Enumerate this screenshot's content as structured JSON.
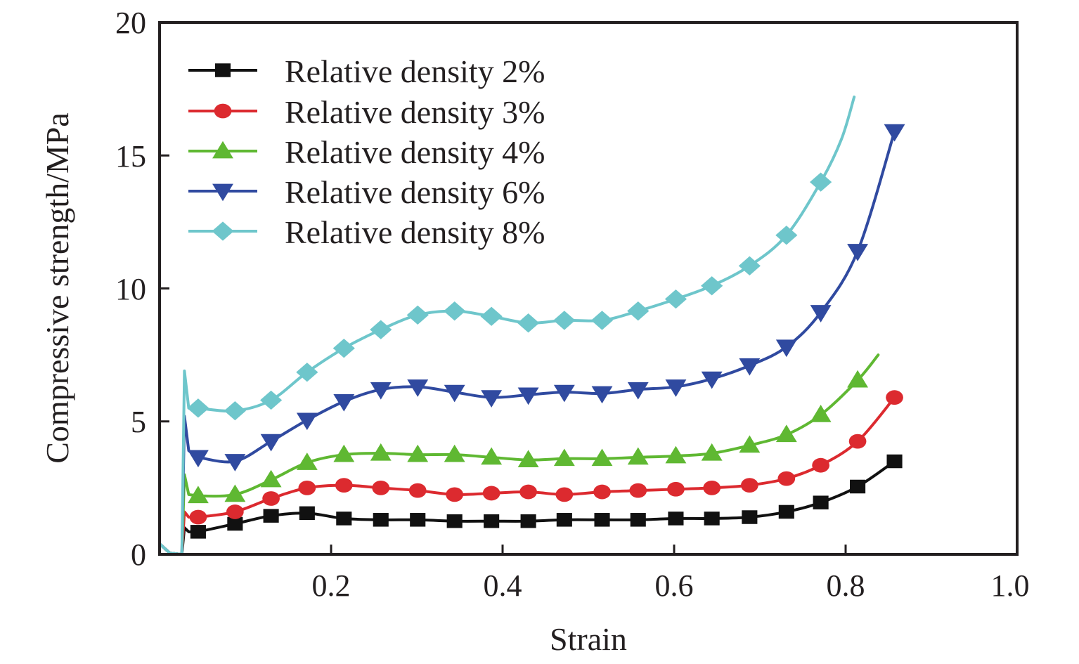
{
  "chart_data": {
    "type": "line",
    "title": "",
    "xlabel": "Strain",
    "ylabel": "Compressive strength/MPa",
    "xlim": [
      0,
      1.0
    ],
    "ylim": [
      0,
      20
    ],
    "xticks": [
      0.2,
      0.4,
      0.6,
      0.8,
      1.0
    ],
    "xtick_labels": [
      "0.2",
      "0.4",
      "0.6",
      "0.8",
      "1.0"
    ],
    "yticks": [
      0,
      5,
      10,
      15,
      20
    ],
    "ytick_labels": [
      "0",
      "5",
      "10",
      "15",
      "20"
    ],
    "grid": false,
    "legend_position": "top-left",
    "series": [
      {
        "name": "Relative density 2%",
        "color": "#111111",
        "marker": "square",
        "x": [
          0.045,
          0.088,
          0.13,
          0.172,
          0.215,
          0.258,
          0.301,
          0.344,
          0.387,
          0.43,
          0.472,
          0.516,
          0.558,
          0.602,
          0.644,
          0.688,
          0.731,
          0.771,
          0.814,
          0.857
        ],
        "y": [
          0.85,
          1.15,
          1.45,
          1.55,
          1.35,
          1.3,
          1.3,
          1.25,
          1.25,
          1.25,
          1.3,
          1.3,
          1.3,
          1.35,
          1.35,
          1.4,
          1.6,
          1.95,
          2.55,
          3.5
        ],
        "line_end_x": 0.857
      },
      {
        "name": "Relative density 3%",
        "color": "#dc2a2f",
        "marker": "circle",
        "x": [
          0.045,
          0.088,
          0.13,
          0.172,
          0.215,
          0.258,
          0.301,
          0.344,
          0.387,
          0.43,
          0.472,
          0.516,
          0.558,
          0.602,
          0.644,
          0.688,
          0.731,
          0.771,
          0.814,
          0.857
        ],
        "y": [
          1.4,
          1.6,
          2.1,
          2.5,
          2.6,
          2.5,
          2.4,
          2.25,
          2.3,
          2.35,
          2.25,
          2.35,
          2.4,
          2.45,
          2.5,
          2.6,
          2.85,
          3.35,
          4.25,
          5.9
        ]
      },
      {
        "name": "Relative density 4%",
        "color": "#5fb832",
        "marker": "triangle-up",
        "x": [
          0.045,
          0.088,
          0.13,
          0.172,
          0.215,
          0.258,
          0.301,
          0.344,
          0.387,
          0.43,
          0.472,
          0.516,
          0.558,
          0.602,
          0.644,
          0.688,
          0.731,
          0.771,
          0.814
        ],
        "y": [
          2.2,
          2.25,
          2.8,
          3.45,
          3.75,
          3.8,
          3.75,
          3.75,
          3.65,
          3.55,
          3.6,
          3.6,
          3.65,
          3.7,
          3.8,
          4.1,
          4.5,
          5.25,
          6.55
        ],
        "tail": [
          [
            0.838,
            7.5
          ]
        ]
      },
      {
        "name": "Relative density 6%",
        "color": "#304aa0",
        "marker": "triangle-down",
        "x": [
          0.045,
          0.088,
          0.13,
          0.172,
          0.215,
          0.258,
          0.301,
          0.344,
          0.387,
          0.43,
          0.472,
          0.516,
          0.558,
          0.602,
          0.644,
          0.688,
          0.731,
          0.771,
          0.814,
          0.857
        ],
        "y": [
          3.65,
          3.5,
          4.25,
          5.05,
          5.75,
          6.2,
          6.3,
          6.1,
          5.9,
          6.0,
          6.1,
          6.05,
          6.2,
          6.3,
          6.6,
          7.1,
          7.8,
          9.1,
          11.4,
          15.9
        ]
      },
      {
        "name": "Relative density 8%",
        "color": "#6ec6cb",
        "marker": "diamond",
        "x": [
          0.045,
          0.088,
          0.13,
          0.172,
          0.215,
          0.258,
          0.301,
          0.344,
          0.387,
          0.43,
          0.472,
          0.516,
          0.558,
          0.602,
          0.644,
          0.688,
          0.731,
          0.771
        ],
        "y": [
          5.5,
          5.4,
          5.8,
          6.85,
          7.75,
          8.45,
          9.0,
          9.15,
          8.95,
          8.7,
          8.8,
          8.8,
          9.15,
          9.6,
          10.1,
          10.85,
          12.0,
          14.0
        ],
        "tail": [
          [
            0.795,
            15.6
          ],
          [
            0.81,
            17.2
          ]
        ]
      }
    ],
    "initial_peak": {
      "x": 0.03,
      "values": {
        "2%": 1.0,
        "3%": 1.6,
        "4%": 3.0,
        "6%": 5.2,
        "8%": 6.9
      }
    }
  }
}
